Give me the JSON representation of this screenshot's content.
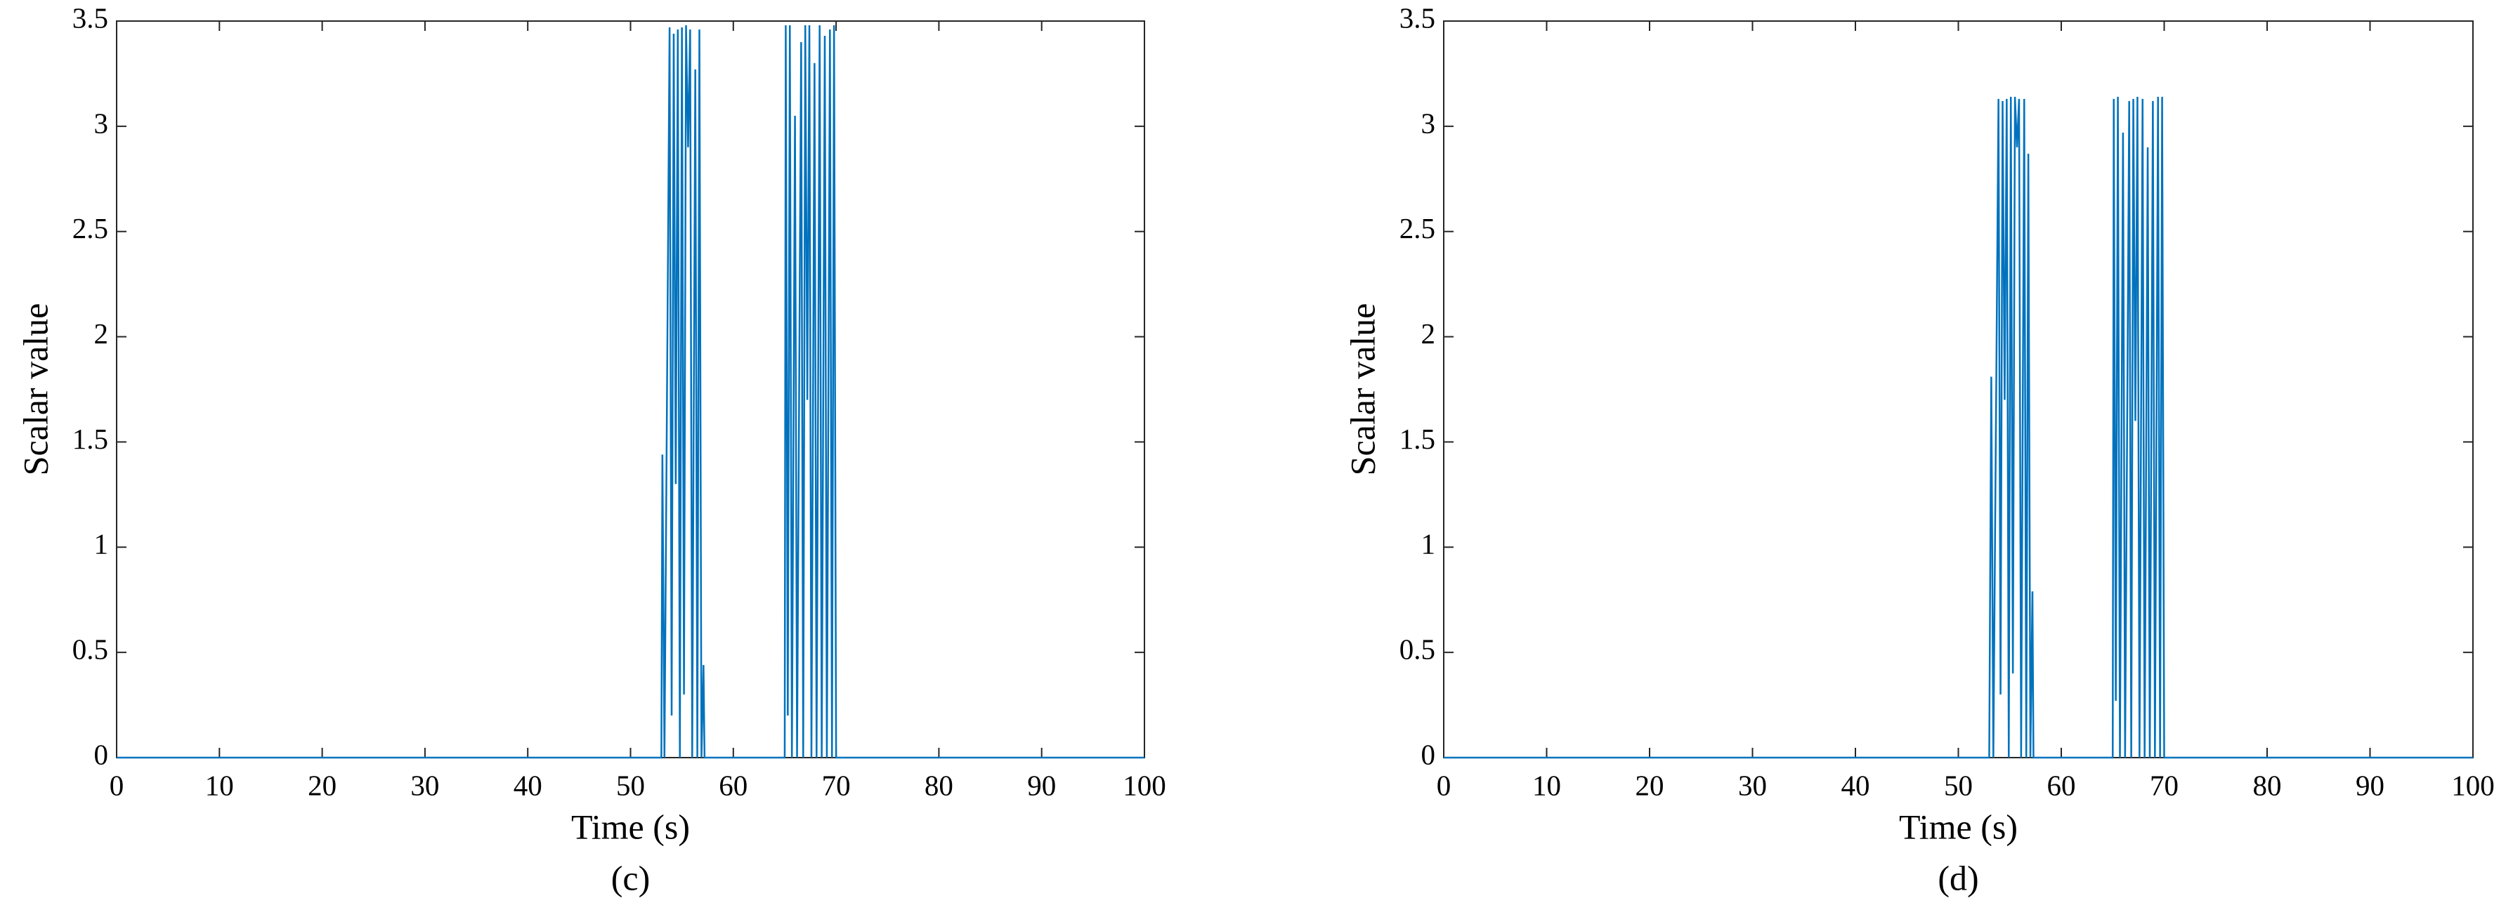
{
  "chart_data": [
    {
      "type": "line",
      "ylabel": "Scalar value",
      "xlabel": "Time (s)",
      "caption": "(c)",
      "xlim": [
        0,
        100
      ],
      "ylim": [
        0,
        3.5
      ],
      "xticks": [
        0,
        10,
        20,
        30,
        40,
        50,
        60,
        70,
        80,
        90,
        100
      ],
      "yticks": [
        0,
        0.5,
        1,
        1.5,
        2,
        2.5,
        3,
        3.5
      ],
      "x": [
        0,
        53,
        53.1,
        53.3,
        53.8,
        54.0,
        54.2,
        54.4,
        54.6,
        54.8,
        55.0,
        55.2,
        55.4,
        55.6,
        55.8,
        56.0,
        56.3,
        56.5,
        56.7,
        56.9,
        57.1,
        57.2,
        65,
        65.1,
        65.3,
        65.5,
        65.7,
        66.0,
        66.2,
        66.6,
        66.8,
        67.0,
        67.2,
        67.4,
        67.6,
        67.9,
        68.1,
        68.4,
        68.6,
        68.9,
        69.1,
        69.4,
        69.6,
        69.8,
        70.0,
        100
      ],
      "series": [
        {
          "name": "scalar",
          "color": "#0072bd",
          "values": [
            0,
            0,
            1.44,
            0,
            3.47,
            0.2,
            3.44,
            1.3,
            3.46,
            0,
            3.47,
            0.3,
            3.48,
            2.9,
            3.46,
            0,
            3.27,
            0,
            3.46,
            0,
            0.44,
            0,
            0,
            3.48,
            0.2,
            3.48,
            0,
            3.05,
            0,
            3.4,
            0,
            3.48,
            1.7,
            3.48,
            0,
            3.3,
            0,
            3.48,
            0,
            3.43,
            0,
            3.46,
            0,
            3.48,
            0,
            0
          ]
        }
      ]
    },
    {
      "type": "line",
      "ylabel": "Scalar value",
      "xlabel": "Time (s)",
      "caption": "(d)",
      "xlim": [
        0,
        100
      ],
      "ylim": [
        0,
        3.5
      ],
      "xticks": [
        0,
        10,
        20,
        30,
        40,
        50,
        60,
        70,
        80,
        90,
        100
      ],
      "yticks": [
        0,
        0.5,
        1,
        1.5,
        2,
        2.5,
        3,
        3.5
      ],
      "x": [
        0,
        53,
        53.2,
        53.4,
        53.9,
        54.1,
        54.3,
        54.5,
        54.7,
        54.9,
        55.1,
        55.3,
        55.5,
        55.7,
        55.9,
        56.1,
        56.4,
        56.6,
        56.8,
        57.0,
        57.2,
        57.3,
        65,
        65.1,
        65.3,
        65.5,
        65.7,
        66.0,
        66.2,
        66.6,
        66.8,
        67.0,
        67.2,
        67.4,
        67.6,
        67.9,
        68.1,
        68.4,
        68.6,
        68.9,
        69.1,
        69.4,
        69.6,
        69.8,
        70.0,
        100
      ],
      "series": [
        {
          "name": "scalar",
          "color": "#0072bd",
          "values": [
            0,
            0,
            1.81,
            0,
            3.13,
            0.3,
            3.12,
            1.7,
            3.13,
            0,
            3.14,
            0.4,
            3.14,
            2.9,
            3.13,
            0,
            3.13,
            0,
            2.87,
            0,
            0.79,
            0,
            0,
            3.13,
            0.27,
            3.14,
            0,
            2.97,
            0,
            3.12,
            0,
            3.13,
            1.6,
            3.14,
            0,
            3.13,
            0,
            2.9,
            0,
            3.12,
            0,
            3.14,
            0,
            3.14,
            0,
            0
          ]
        }
      ]
    }
  ]
}
